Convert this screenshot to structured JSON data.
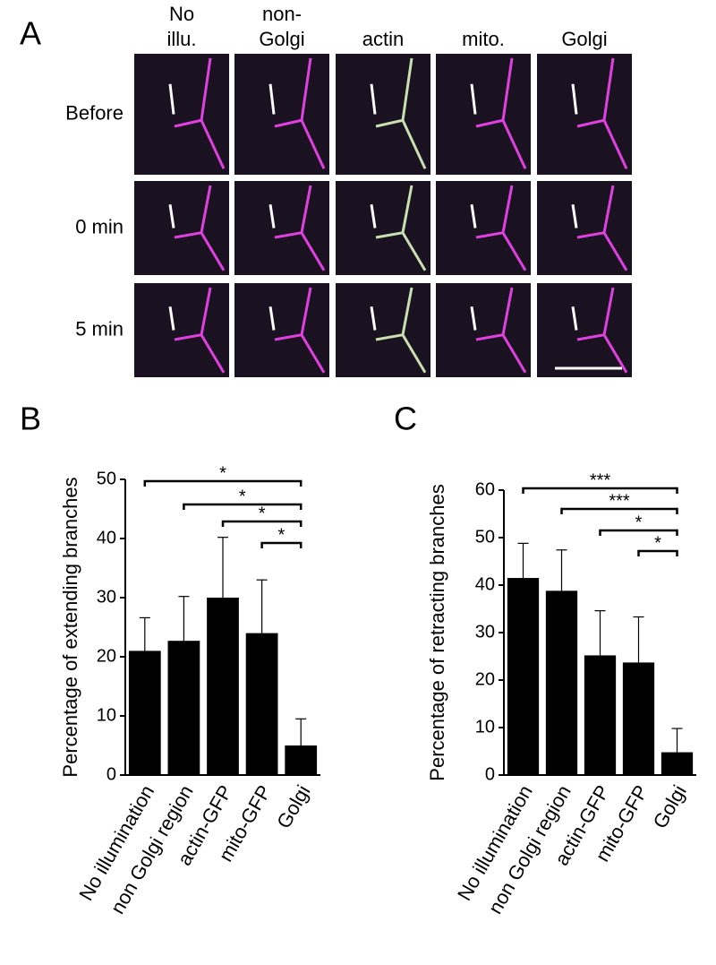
{
  "panel_a": {
    "label": "A",
    "columns": [
      [
        "No",
        "illu."
      ],
      [
        "non-",
        "Golgi"
      ],
      [
        "actin"
      ],
      [
        "mito."
      ],
      [
        "Golgi"
      ]
    ],
    "rows": [
      "Before",
      "0 min",
      "5 min"
    ]
  },
  "chart_data": [
    {
      "type": "bar",
      "panel_label": "B",
      "ylabel": "Percentage of extending branches",
      "categories": [
        "No illumination",
        "non Golgi region",
        "actin-GFP",
        "mito-GFP",
        "Golgi"
      ],
      "values": [
        21,
        22.7,
        30,
        24,
        5
      ],
      "errors": [
        5.6,
        7.5,
        10.2,
        9,
        4.5
      ],
      "color": "#000000",
      "ylim": [
        0,
        50
      ],
      "yticks": [
        0,
        10,
        20,
        30,
        40,
        50
      ],
      "significance": [
        {
          "from": 0,
          "to": 4,
          "label": "*"
        },
        {
          "from": 1,
          "to": 4,
          "label": "*"
        },
        {
          "from": 2,
          "to": 4,
          "label": "*"
        },
        {
          "from": 3,
          "to": 4,
          "label": "*"
        }
      ]
    },
    {
      "type": "bar",
      "panel_label": "C",
      "ylabel": "Percentage of retracting branches",
      "categories": [
        "No illumination",
        "non Golgi region",
        "actin-GFP",
        "mito-GFP",
        "Golgi"
      ],
      "values": [
        41.5,
        38.8,
        25.2,
        23.7,
        4.8
      ],
      "errors": [
        7.3,
        8.6,
        9.4,
        9.6,
        5.0
      ],
      "color": "#000000",
      "ylim": [
        0,
        60
      ],
      "yticks": [
        0,
        10,
        20,
        30,
        40,
        50,
        60
      ],
      "significance": [
        {
          "from": 0,
          "to": 4,
          "label": "***"
        },
        {
          "from": 1,
          "to": 4,
          "label": "***"
        },
        {
          "from": 2,
          "to": 4,
          "label": "*"
        },
        {
          "from": 3,
          "to": 4,
          "label": "*"
        }
      ]
    }
  ]
}
